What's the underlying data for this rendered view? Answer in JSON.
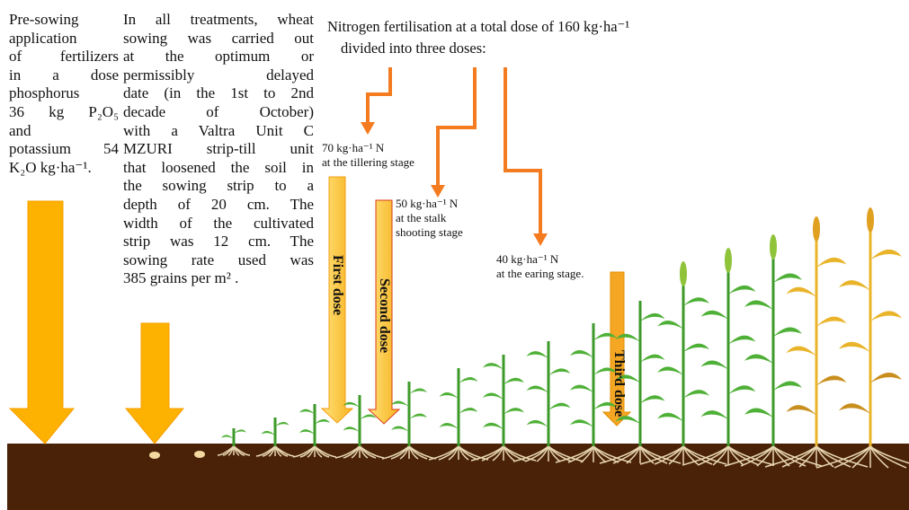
{
  "pre_sowing": {
    "lines": [
      "Pre-sowing",
      "application",
      "of fertilizers",
      "in a dose",
      "phosphorus",
      "36 kg P₂O₅",
      "and",
      "potassium 54",
      "K₂O kg·ha⁻¹."
    ]
  },
  "sowing": {
    "lines": [
      "In all treatments, wheat",
      "sowing was carried out",
      "at the optimum or",
      "permissibly delayed",
      "date (in the 1st to 2nd",
      "decade of October)",
      "with a Valtra Unit C",
      "MZURI strip-till unit",
      "that loosened the soil in",
      "the sowing strip to a",
      "depth of 20 cm. The",
      "width of the cultivated",
      "strip was 12 cm. The",
      "sowing rate used was",
      "385 grains per m² ."
    ]
  },
  "nitrogen": {
    "lines": [
      "Nitrogen fertilisation at a total dose of 160 kg·ha⁻¹",
      "divided into three doses:"
    ]
  },
  "doses": [
    {
      "lines": [
        "70 kg·ha⁻¹ N",
        "at the tillering stage"
      ],
      "arrow_label": "First dose"
    },
    {
      "lines": [
        "50 kg·ha⁻¹ N",
        "at the stalk",
        "shooting stage"
      ],
      "arrow_label": "Second dose"
    },
    {
      "lines": [
        "40 kg·ha⁻¹ N",
        "at the earing stage."
      ],
      "arrow_label": "Third dose"
    }
  ]
}
